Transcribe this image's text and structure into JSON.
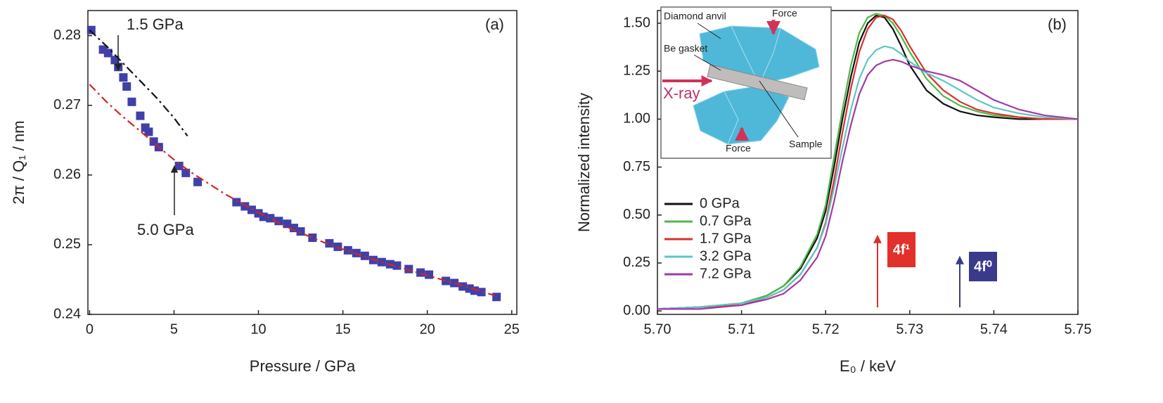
{
  "chart_data": [
    {
      "type": "scatter",
      "xlabel": "Pressure / GPa",
      "ylabel": "2π / Q₁ / nm",
      "panel": "(a)",
      "annotations": [
        "1.5 GPa",
        "5.0 GPa"
      ],
      "xlim": [
        -0.1,
        25.3
      ],
      "ylim": [
        0.24,
        0.2836
      ],
      "xticks": [
        0,
        5,
        10,
        15,
        20,
        25
      ],
      "yticks": [
        0.24,
        0.25,
        0.26,
        0.27,
        0.28
      ],
      "series": [
        {
          "color": "#4040a8",
          "marker": "square",
          "x": [
            0.1,
            0.8,
            1.1,
            1.5,
            1.7,
            2.0,
            2.2,
            2.5,
            3.0,
            3.3,
            3.5,
            3.8,
            4.1,
            5.3,
            5.7,
            6.4,
            8.7,
            9.2,
            9.6,
            10.0,
            10.3,
            10.7,
            11.2,
            11.7,
            12.1,
            12.5,
            13.2,
            14.2,
            14.7,
            15.3,
            15.8,
            16.3,
            16.8,
            17.3,
            17.8,
            18.2,
            18.9,
            19.6,
            20.1,
            21.1,
            21.6,
            22.1,
            22.5,
            22.8,
            23.2,
            24.1
          ],
          "values": [
            0.2808,
            0.278,
            0.2775,
            0.2765,
            0.2755,
            0.274,
            0.2727,
            0.2705,
            0.2685,
            0.2668,
            0.2662,
            0.2648,
            0.264,
            0.2613,
            0.2603,
            0.259,
            0.2561,
            0.2555,
            0.255,
            0.2545,
            0.254,
            0.2538,
            0.2534,
            0.253,
            0.2524,
            0.2519,
            0.251,
            0.2502,
            0.2497,
            0.2492,
            0.2488,
            0.2484,
            0.2478,
            0.2475,
            0.2472,
            0.247,
            0.2465,
            0.246,
            0.2457,
            0.2448,
            0.2445,
            0.244,
            0.2437,
            0.2434,
            0.2432,
            0.2425
          ]
        },
        {
          "color": "#111111",
          "style": "dashdot",
          "x": [
            0,
            1,
            2,
            3,
            4,
            5,
            5.8
          ],
          "values": [
            0.2808,
            0.2785,
            0.276,
            0.2735,
            0.271,
            0.2682,
            0.2656
          ]
        },
        {
          "color": "#d0262a",
          "style": "dashdot",
          "x": [
            0,
            1,
            2,
            3,
            4,
            5,
            6,
            8,
            10,
            12,
            14,
            16,
            18,
            20,
            22,
            24
          ],
          "values": [
            0.273,
            0.2705,
            0.2683,
            0.2663,
            0.2642,
            0.2622,
            0.2604,
            0.2573,
            0.2546,
            0.2522,
            0.2502,
            0.2485,
            0.247,
            0.2456,
            0.2442,
            0.2427
          ]
        }
      ]
    },
    {
      "type": "line",
      "xlabel": "E₀ / keV",
      "ylabel": "Normalized intensity",
      "panel": "(b)",
      "annotations": [
        "4f¹",
        "4f⁰"
      ],
      "inset": [
        "Diamond anvil",
        "Force",
        "Be gasket",
        "X-ray",
        "Force",
        "Sample"
      ],
      "legend": "lower left",
      "xlim": [
        5.7,
        5.75
      ],
      "ylim": [
        -0.018,
        1.566
      ],
      "xticks": [
        {
          "value": 5.7,
          "label": "5.70"
        },
        5.71,
        5.72,
        5.73,
        5.74,
        5.75
      ],
      "yticks": [
        {
          "value": 0,
          "label": "0.00"
        },
        0.25,
        {
          "value": 0.5,
          "label": "0.50"
        },
        0.75,
        {
          "value": 1,
          "label": "1.00"
        },
        1.25,
        {
          "value": 1.5,
          "label": "1.50"
        }
      ],
      "x": [
        5.7,
        5.705,
        5.71,
        5.713,
        5.715,
        5.717,
        5.719,
        5.72,
        5.721,
        5.722,
        5.723,
        5.724,
        5.725,
        5.726,
        5.727,
        5.728,
        5.729,
        5.73,
        5.732,
        5.734,
        5.736,
        5.738,
        5.74,
        5.743,
        5.746,
        5.75
      ],
      "series": [
        {
          "name": "0 GPa",
          "color": "#111111",
          "values": [
            0.01,
            0.02,
            0.04,
            0.08,
            0.13,
            0.22,
            0.38,
            0.52,
            0.75,
            1.0,
            1.22,
            1.4,
            1.5,
            1.54,
            1.53,
            1.47,
            1.38,
            1.28,
            1.15,
            1.08,
            1.04,
            1.02,
            1.01,
            1.0,
            1.0,
            1.0
          ]
        },
        {
          "name": "0.7 GPa",
          "color": "#4db848",
          "values": [
            0.01,
            0.02,
            0.04,
            0.08,
            0.13,
            0.23,
            0.4,
            0.55,
            0.8,
            1.05,
            1.28,
            1.45,
            1.53,
            1.55,
            1.54,
            1.5,
            1.43,
            1.35,
            1.21,
            1.12,
            1.07,
            1.04,
            1.02,
            1.01,
            1.0,
            1.0
          ]
        },
        {
          "name": "1.7 GPa",
          "color": "#d9312c",
          "values": [
            0.01,
            0.02,
            0.03,
            0.07,
            0.11,
            0.19,
            0.33,
            0.46,
            0.68,
            0.93,
            1.16,
            1.35,
            1.47,
            1.53,
            1.54,
            1.52,
            1.46,
            1.38,
            1.24,
            1.15,
            1.09,
            1.05,
            1.03,
            1.01,
            1.0,
            1.0
          ]
        },
        {
          "name": "3.2 GPa",
          "color": "#5cc6c4",
          "values": [
            0.01,
            0.02,
            0.04,
            0.07,
            0.11,
            0.19,
            0.33,
            0.45,
            0.64,
            0.85,
            1.05,
            1.21,
            1.31,
            1.36,
            1.38,
            1.37,
            1.34,
            1.3,
            1.24,
            1.2,
            1.15,
            1.1,
            1.06,
            1.03,
            1.01,
            1.0
          ]
        },
        {
          "name": "7.2 GPa",
          "color": "#a23aa6",
          "values": [
            0.01,
            0.01,
            0.03,
            0.06,
            0.09,
            0.16,
            0.28,
            0.39,
            0.57,
            0.78,
            0.97,
            1.13,
            1.23,
            1.28,
            1.3,
            1.31,
            1.3,
            1.28,
            1.25,
            1.23,
            1.2,
            1.15,
            1.1,
            1.05,
            1.02,
            1.0
          ]
        }
      ]
    }
  ]
}
